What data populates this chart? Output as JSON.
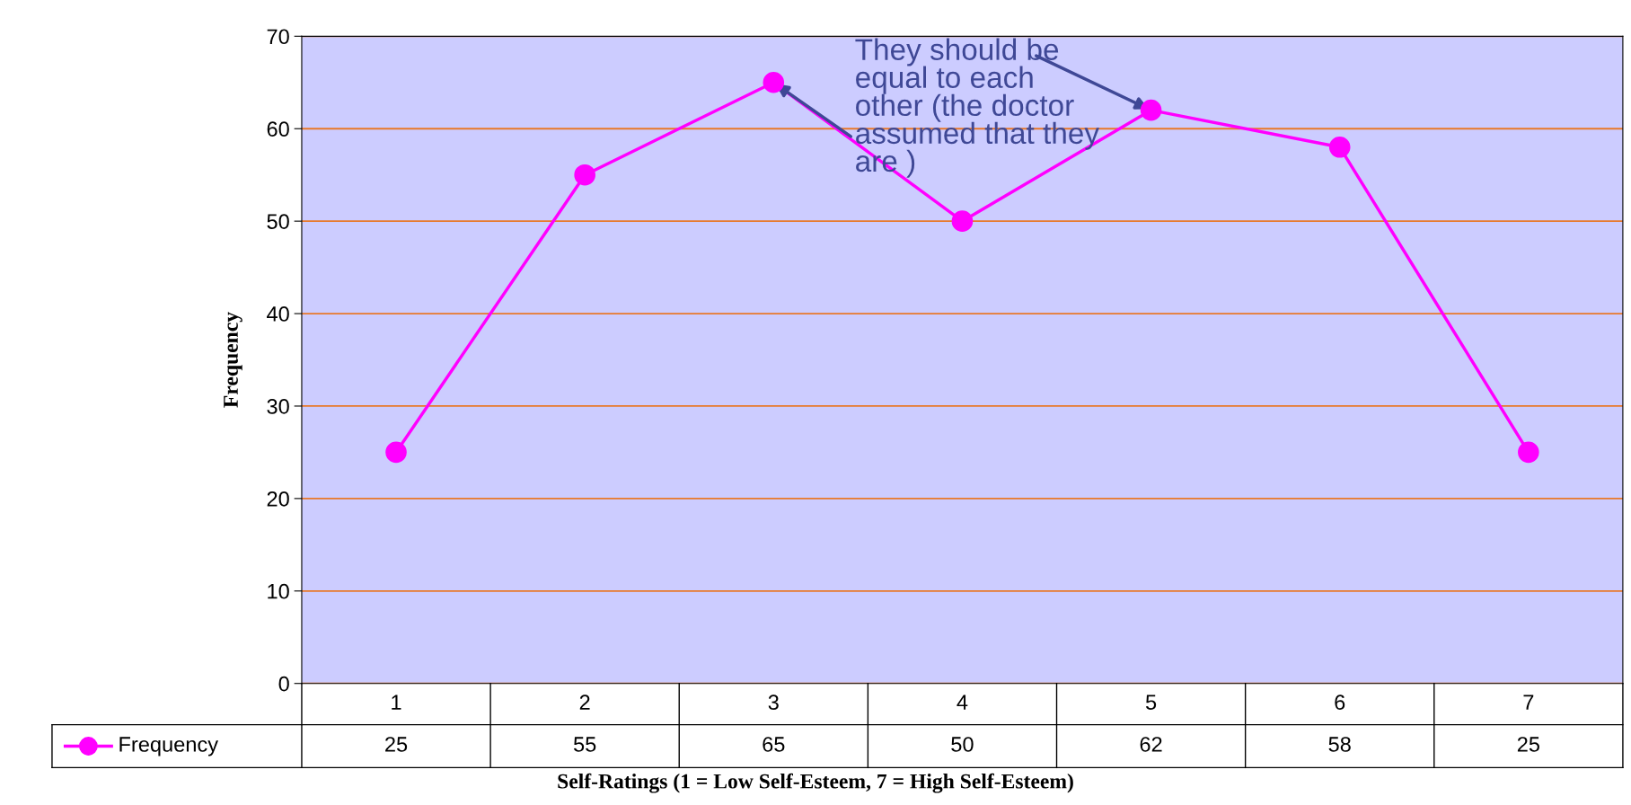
{
  "chart_data": {
    "type": "line",
    "categories": [
      "1",
      "2",
      "3",
      "4",
      "5",
      "6",
      "7"
    ],
    "series": [
      {
        "name": "Frequency",
        "color": "#ff00ff",
        "values": [
          25,
          55,
          65,
          50,
          62,
          58,
          25
        ]
      }
    ],
    "xlabel": "Self-Ratings (1 = Low Self-Esteem, 7 = High Self-Esteem)",
    "ylabel": "Frequency",
    "ylim": [
      0,
      70
    ],
    "yticks": [
      0,
      10,
      20,
      30,
      40,
      50,
      60,
      70
    ],
    "grid": "y",
    "marker": "circle",
    "line_style": "solid",
    "data_labels": true,
    "legend": "bottom",
    "annotations": [
      {
        "text": "They should be\nequal to each\nother (the doctor\nassumed that they\nare )",
        "x": "3",
        "y": 65
      }
    ]
  }
}
